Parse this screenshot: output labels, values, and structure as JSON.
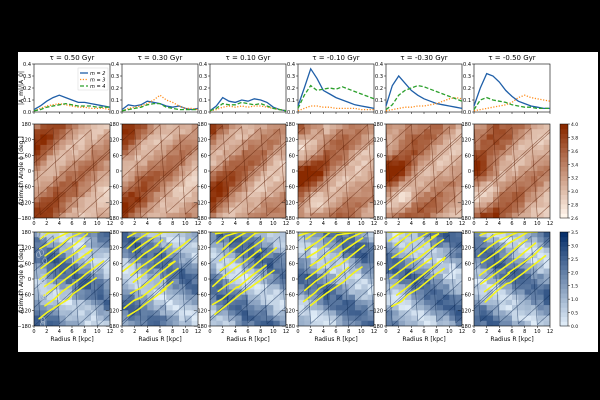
{
  "figure": {
    "panel_titles": [
      "τ = 0.50 Gyr",
      "τ = 0.30 Gyr",
      "τ = 0.10 Gyr",
      "τ = -0.10 Gyr",
      "τ = -0.30 Gyr",
      "τ = -0.50 Gyr"
    ],
    "top_ylabel": "|A_m|/|A_0|",
    "azimuth_ylabel": "Azimuth Angle ϕ [deg.]",
    "xlabel": "Radius R [kpc]",
    "colors": {
      "m2": "#1f5fa8",
      "m3": "#ff8c1a",
      "m4": "#2ca02c",
      "heat_dark": "#8a2a00",
      "heat_light": "#fff5eb",
      "blue_dark": "#08306b",
      "blue_light": "#deebf7",
      "yellow": "#f5f51a"
    }
  },
  "chart_data": [
    {
      "type": "line",
      "title": "τ = 0.50 Gyr",
      "ylabel": "|A_m|/|A_0|",
      "xlim": [
        0,
        12
      ],
      "ylim": [
        0,
        0.4
      ],
      "x_ticks": [
        0,
        2,
        4,
        6,
        8,
        10,
        12
      ],
      "y_ticks": [
        0.0,
        0.1,
        0.2,
        0.3,
        0.4
      ],
      "legend": [
        "m = 2",
        "m = 3",
        "m = 4"
      ],
      "legend_position": "top-right",
      "x": [
        0,
        1,
        2,
        3,
        4,
        5,
        6,
        7,
        8,
        9,
        10,
        11,
        12
      ],
      "series": [
        {
          "name": "m = 2",
          "values": [
            0.02,
            0.05,
            0.09,
            0.12,
            0.14,
            0.12,
            0.1,
            0.08,
            0.08,
            0.07,
            0.06,
            0.05,
            0.04
          ]
        },
        {
          "name": "m = 3",
          "values": [
            0.01,
            0.03,
            0.05,
            0.06,
            0.07,
            0.06,
            0.05,
            0.04,
            0.04,
            0.03,
            0.03,
            0.03,
            0.02
          ]
        },
        {
          "name": "m = 4",
          "values": [
            0.01,
            0.02,
            0.04,
            0.05,
            0.06,
            0.07,
            0.06,
            0.05,
            0.05,
            0.05,
            0.04,
            0.04,
            0.04
          ]
        }
      ]
    },
    {
      "type": "line",
      "title": "τ = 0.30 Gyr",
      "xlim": [
        0,
        12
      ],
      "ylim": [
        0,
        0.4
      ],
      "x_ticks": [
        0,
        2,
        4,
        6,
        8,
        10,
        12
      ],
      "y_ticks": [
        0.0,
        0.1,
        0.2,
        0.3,
        0.4
      ],
      "x": [
        0,
        1,
        2,
        3,
        4,
        5,
        6,
        7,
        8,
        9,
        10,
        11,
        12
      ],
      "series": [
        {
          "name": "m = 2",
          "values": [
            0.02,
            0.06,
            0.05,
            0.06,
            0.09,
            0.08,
            0.07,
            0.05,
            0.04,
            0.05,
            0.03,
            0.02,
            0.03
          ]
        },
        {
          "name": "m = 3",
          "values": [
            0.01,
            0.03,
            0.04,
            0.05,
            0.07,
            0.1,
            0.14,
            0.1,
            0.08,
            0.05,
            0.03,
            0.03,
            0.02
          ]
        },
        {
          "name": "m = 4",
          "values": [
            0.01,
            0.02,
            0.03,
            0.04,
            0.06,
            0.07,
            0.07,
            0.04,
            0.03,
            0.02,
            0.02,
            0.02,
            0.02
          ]
        }
      ]
    },
    {
      "type": "line",
      "title": "τ = 0.10 Gyr",
      "xlim": [
        0,
        12
      ],
      "ylim": [
        0,
        0.4
      ],
      "x_ticks": [
        0,
        2,
        4,
        6,
        8,
        10,
        12
      ],
      "y_ticks": [
        0.0,
        0.1,
        0.2,
        0.3,
        0.4
      ],
      "x": [
        0,
        1,
        2,
        3,
        4,
        5,
        6,
        7,
        8,
        9,
        10,
        11,
        12
      ],
      "series": [
        {
          "name": "m = 2",
          "values": [
            0.01,
            0.05,
            0.12,
            0.09,
            0.08,
            0.1,
            0.09,
            0.11,
            0.1,
            0.08,
            0.04,
            0.02,
            0.01
          ]
        },
        {
          "name": "m = 3",
          "values": [
            0.01,
            0.02,
            0.04,
            0.05,
            0.04,
            0.05,
            0.04,
            0.05,
            0.05,
            0.04,
            0.03,
            0.02,
            0.01
          ]
        },
        {
          "name": "m = 4",
          "values": [
            0.01,
            0.03,
            0.07,
            0.06,
            0.06,
            0.08,
            0.07,
            0.06,
            0.07,
            0.05,
            0.03,
            0.02,
            0.01
          ]
        }
      ]
    },
    {
      "type": "line",
      "title": "τ = -0.10 Gyr",
      "xlim": [
        0,
        12
      ],
      "ylim": [
        0,
        0.4
      ],
      "x_ticks": [
        0,
        2,
        4,
        6,
        8,
        10,
        12
      ],
      "y_ticks": [
        0.0,
        0.1,
        0.2,
        0.3,
        0.4
      ],
      "x": [
        0,
        1,
        2,
        3,
        4,
        5,
        6,
        7,
        8,
        9,
        10,
        11,
        12
      ],
      "series": [
        {
          "name": "m = 2",
          "values": [
            0.05,
            0.2,
            0.36,
            0.28,
            0.18,
            0.15,
            0.12,
            0.1,
            0.08,
            0.06,
            0.05,
            0.04,
            0.03
          ]
        },
        {
          "name": "m = 3",
          "values": [
            0.01,
            0.03,
            0.05,
            0.05,
            0.04,
            0.04,
            0.03,
            0.03,
            0.03,
            0.03,
            0.02,
            0.02,
            0.02
          ]
        },
        {
          "name": "m = 4",
          "values": [
            0.03,
            0.14,
            0.22,
            0.18,
            0.19,
            0.2,
            0.19,
            0.21,
            0.19,
            0.17,
            0.15,
            0.13,
            0.11
          ]
        }
      ]
    },
    {
      "type": "line",
      "title": "τ = -0.30 Gyr",
      "xlim": [
        0,
        12
      ],
      "ylim": [
        0,
        0.4
      ],
      "x_ticks": [
        0,
        2,
        4,
        6,
        8,
        10,
        12
      ],
      "y_ticks": [
        0.0,
        0.1,
        0.2,
        0.3,
        0.4
      ],
      "x": [
        0,
        1,
        2,
        3,
        4,
        5,
        6,
        7,
        8,
        9,
        10,
        11,
        12
      ],
      "series": [
        {
          "name": "m = 2",
          "values": [
            0.05,
            0.22,
            0.3,
            0.24,
            0.18,
            0.14,
            0.11,
            0.09,
            0.07,
            0.06,
            0.05,
            0.04,
            0.03
          ]
        },
        {
          "name": "m = 3",
          "values": [
            0.01,
            0.02,
            0.03,
            0.04,
            0.04,
            0.05,
            0.05,
            0.06,
            0.07,
            0.09,
            0.11,
            0.12,
            0.11
          ]
        },
        {
          "name": "m = 4",
          "values": [
            0.02,
            0.06,
            0.14,
            0.18,
            0.2,
            0.22,
            0.21,
            0.19,
            0.17,
            0.15,
            0.13,
            0.11,
            0.09
          ]
        }
      ]
    },
    {
      "type": "line",
      "title": "τ = -0.50 Gyr",
      "xlim": [
        0,
        12
      ],
      "ylim": [
        0,
        0.4
      ],
      "x_ticks": [
        0,
        2,
        4,
        6,
        8,
        10,
        12
      ],
      "y_ticks": [
        0.0,
        0.1,
        0.2,
        0.3,
        0.4
      ],
      "x": [
        0,
        1,
        2,
        3,
        4,
        5,
        6,
        7,
        8,
        9,
        10,
        11,
        12
      ],
      "series": [
        {
          "name": "m = 2",
          "values": [
            0.05,
            0.2,
            0.32,
            0.3,
            0.25,
            0.18,
            0.13,
            0.09,
            0.07,
            0.05,
            0.04,
            0.03,
            0.03
          ]
        },
        {
          "name": "m = 3",
          "values": [
            0.01,
            0.02,
            0.03,
            0.04,
            0.05,
            0.06,
            0.08,
            0.12,
            0.14,
            0.12,
            0.11,
            0.1,
            0.09
          ]
        },
        {
          "name": "m = 4",
          "values": [
            0.02,
            0.1,
            0.12,
            0.1,
            0.09,
            0.08,
            0.06,
            0.05,
            0.04,
            0.04,
            0.03,
            0.03,
            0.03
          ]
        }
      ]
    },
    {
      "type": "heatmap",
      "description_row": "middle",
      "xlabel": "",
      "ylabel": "Azimuth Angle ϕ [deg.]",
      "xlim": [
        0,
        12
      ],
      "ylim": [
        -180,
        180
      ],
      "x_ticks": [
        0,
        2,
        4,
        6,
        8,
        10,
        12
      ],
      "y_ticks": [
        -180,
        -120,
        -60,
        0,
        60,
        120,
        180
      ],
      "colorbar": {
        "range": [
          2.6,
          4.0
        ],
        "ticks": [
          "2.6",
          "2.8",
          "3.0",
          "3.2",
          "3.4",
          "3.6",
          "3.8",
          "4.0"
        ],
        "colormap": "Oranges"
      }
    },
    {
      "type": "heatmap",
      "description_row": "bottom",
      "xlabel": "Radius R [kpc]",
      "ylabel": "Azimuth Angle ϕ [deg.]",
      "xlim": [
        0,
        12
      ],
      "ylim": [
        -180,
        180
      ],
      "x_ticks": [
        0,
        2,
        4,
        6,
        8,
        10,
        12
      ],
      "y_ticks": [
        -180,
        -120,
        -60,
        0,
        60,
        120,
        180
      ],
      "colorbar": {
        "range": [
          0.0,
          3.5
        ],
        "ticks": [
          "0.0",
          "0.5",
          "1.0",
          "1.5",
          "2.0",
          "2.5",
          "3.0",
          "3.5"
        ],
        "colormap": "Blues"
      }
    }
  ]
}
